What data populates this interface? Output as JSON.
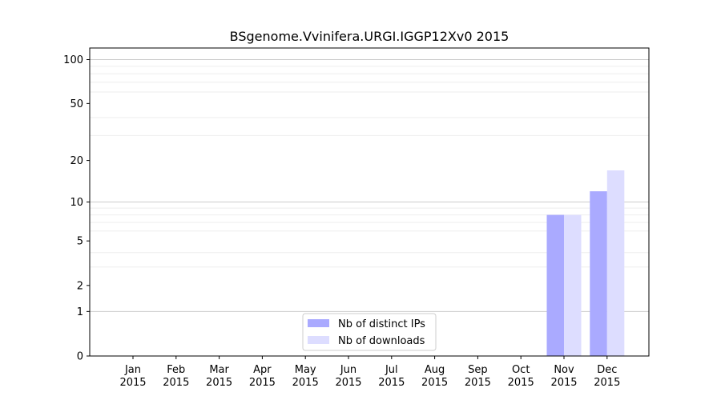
{
  "chart_data": {
    "type": "bar",
    "title": "BSgenome.Vvinifera.URGI.IGGP12Xv0 2015",
    "xlabel": "",
    "ylabel": "",
    "y_scale": "log(1+y)",
    "ylim": [
      0,
      120
    ],
    "yticks": [
      0,
      1,
      2,
      5,
      10,
      20,
      50,
      100
    ],
    "categories": [
      "Jan\n2015",
      "Feb\n2015",
      "Mar\n2015",
      "Apr\n2015",
      "May\n2015",
      "Jun\n2015",
      "Jul\n2015",
      "Aug\n2015",
      "Sep\n2015",
      "Oct\n2015",
      "Nov\n2015",
      "Dec\n2015"
    ],
    "series": [
      {
        "name": "Nb of distinct IPs",
        "color": "#aaaaff",
        "values": [
          0,
          0,
          0,
          0,
          0,
          0,
          0,
          0,
          0,
          0,
          8,
          12
        ]
      },
      {
        "name": "Nb of downloads",
        "color": "#ddddff",
        "values": [
          0,
          0,
          0,
          0,
          0,
          0,
          0,
          0,
          0,
          0,
          8,
          17
        ]
      }
    ],
    "legend": "lower-center",
    "grid": "y"
  }
}
